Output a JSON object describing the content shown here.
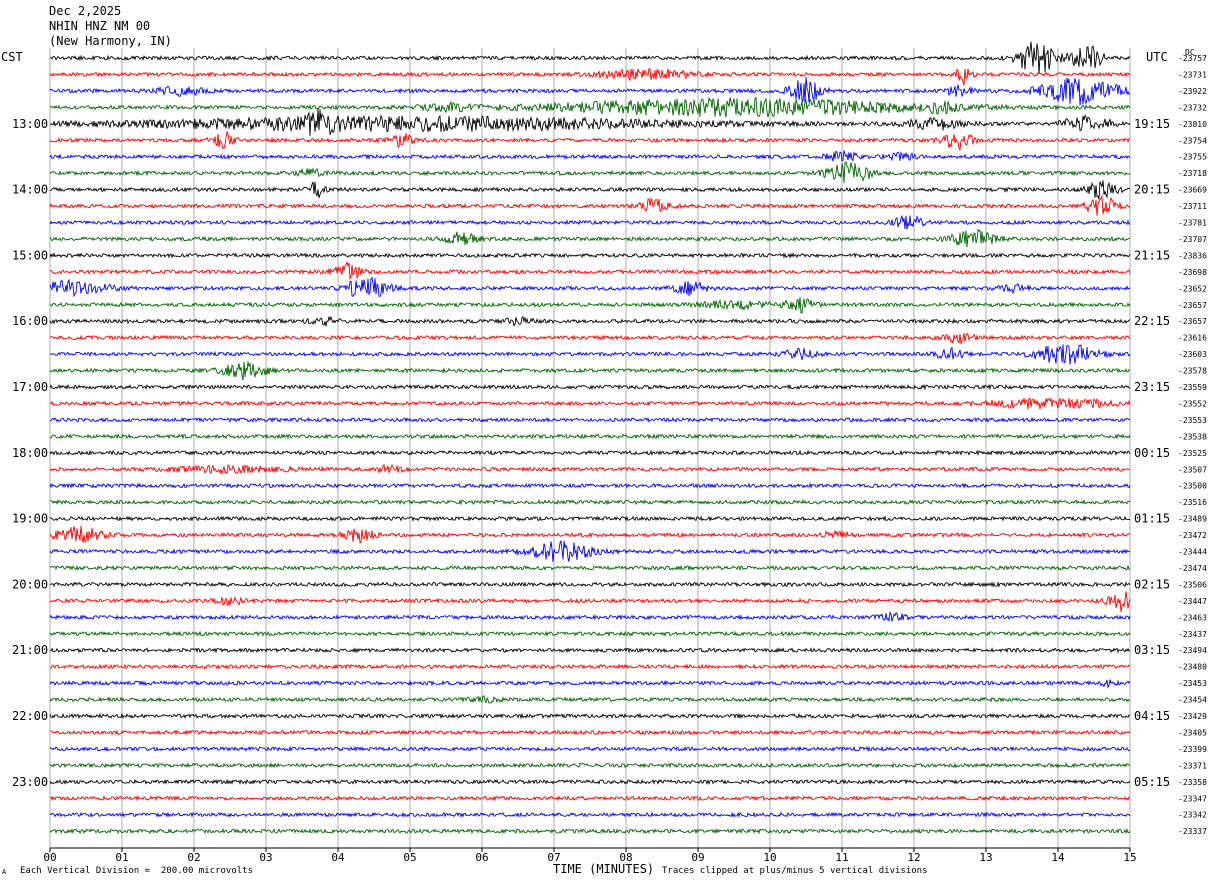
{
  "header": {
    "date": "Dec 2,2025",
    "station": "NHIN HNZ NM 00",
    "location": "(New Harmony, IN)"
  },
  "left_timezone": "CST",
  "right_timezone": "UTC",
  "dc_label": "DC",
  "footer": {
    "scale_note": "Each Vertical Division =  200.00 microvolts",
    "x_axis_label": "TIME (MINUTES)",
    "clip_note": "Traces clipped at plus/minus 5 vertical divisions",
    "corner_mark": "A"
  },
  "colors": {
    "trace_cycle": [
      "#000000",
      "#ff0000",
      "#0000ff",
      "#006400"
    ],
    "grid": "#000000",
    "background": "#ffffff"
  },
  "chart_data": {
    "type": "seismogram",
    "x_ticks": [
      "00",
      "01",
      "02",
      "03",
      "04",
      "05",
      "06",
      "07",
      "08",
      "09",
      "10",
      "11",
      "12",
      "13",
      "14",
      "15"
    ],
    "x_range": [
      0,
      15
    ],
    "trace_count": 48,
    "minutes_per_trace": 15,
    "left_hour_labels": [
      "13:00",
      "14:00",
      "15:00",
      "16:00",
      "17:00",
      "18:00",
      "19:00",
      "20:00",
      "21:00",
      "22:00",
      "23:00"
    ],
    "right_hour_labels": [
      "19:15",
      "20:15",
      "21:15",
      "22:15",
      "23:15",
      "00:15",
      "01:15",
      "02:15",
      "03:15",
      "04:15",
      "05:15"
    ],
    "dc_offsets": [
      "-23757",
      "-23731",
      "-23922",
      "-23732",
      "-23810",
      "-23754",
      "-23755",
      "-23718",
      "-23669",
      "-23711",
      "-23781",
      "-23707",
      "-23836",
      "-23698",
      "-23652",
      "-23657",
      "-23657",
      "-23616",
      "-23603",
      "-23578",
      "-23559",
      "-23552",
      "-23553",
      "-23538",
      "-23525",
      "-23507",
      "-23500",
      "-23516",
      "-23489",
      "-23472",
      "-23444",
      "-23474",
      "-23506",
      "-23447",
      "-23463",
      "-23437",
      "-23494",
      "-23480",
      "-23453",
      "-23454",
      "-23429",
      "-23405",
      "-23399",
      "-23371",
      "-23358",
      "-23347",
      "-23342",
      "-23337"
    ],
    "events": [
      {
        "trace": 0,
        "minute": 13.7,
        "amp": 5.0,
        "dur": 0.25
      },
      {
        "trace": 0,
        "minute": 14.4,
        "amp": 4.0,
        "dur": 0.2
      },
      {
        "trace": 1,
        "minute": 12.7,
        "amp": 3.0,
        "dur": 0.1
      },
      {
        "trace": 1,
        "minute": 8.3,
        "amp": 1.5,
        "dur": 0.6
      },
      {
        "trace": 2,
        "minute": 10.5,
        "amp": 4.0,
        "dur": 0.2
      },
      {
        "trace": 2,
        "minute": 1.8,
        "amp": 1.2,
        "dur": 0.3
      },
      {
        "trace": 2,
        "minute": 12.6,
        "amp": 1.5,
        "dur": 0.2
      },
      {
        "trace": 2,
        "minute": 14.3,
        "amp": 4.0,
        "dur": 0.5
      },
      {
        "trace": 3,
        "minute": 9.5,
        "amp": 2.5,
        "dur": 2.4
      },
      {
        "trace": 3,
        "minute": 5.5,
        "amp": 1.0,
        "dur": 0.3
      },
      {
        "trace": 3,
        "minute": 12.4,
        "amp": 1.0,
        "dur": 0.2
      },
      {
        "trace": 4,
        "minute": 5.0,
        "amp": 2.0,
        "dur": 3.6
      },
      {
        "trace": 4,
        "minute": 3.7,
        "amp": 2.5,
        "dur": 0.2
      },
      {
        "trace": 4,
        "minute": 12.3,
        "amp": 1.5,
        "dur": 0.4
      },
      {
        "trace": 4,
        "minute": 14.4,
        "amp": 2.5,
        "dur": 0.3
      },
      {
        "trace": 5,
        "minute": 2.4,
        "amp": 2.5,
        "dur": 0.15
      },
      {
        "trace": 5,
        "minute": 4.9,
        "amp": 2.0,
        "dur": 0.15
      },
      {
        "trace": 5,
        "minute": 12.6,
        "amp": 2.5,
        "dur": 0.2
      },
      {
        "trace": 6,
        "minute": 11.0,
        "amp": 1.5,
        "dur": 0.2
      },
      {
        "trace": 6,
        "minute": 11.8,
        "amp": 1.0,
        "dur": 0.2
      },
      {
        "trace": 7,
        "minute": 11.1,
        "amp": 3.0,
        "dur": 0.3
      },
      {
        "trace": 7,
        "minute": 3.6,
        "amp": 1.0,
        "dur": 0.2
      },
      {
        "trace": 8,
        "minute": 3.7,
        "amp": 2.5,
        "dur": 0.1
      },
      {
        "trace": 8,
        "minute": 14.6,
        "amp": 2.5,
        "dur": 0.2
      },
      {
        "trace": 9,
        "minute": 8.4,
        "amp": 2.0,
        "dur": 0.2
      },
      {
        "trace": 9,
        "minute": 14.6,
        "amp": 3.0,
        "dur": 0.2
      },
      {
        "trace": 10,
        "minute": 11.9,
        "amp": 2.0,
        "dur": 0.2
      },
      {
        "trace": 11,
        "minute": 5.7,
        "amp": 2.0,
        "dur": 0.2
      },
      {
        "trace": 11,
        "minute": 12.8,
        "amp": 2.5,
        "dur": 0.3
      },
      {
        "trace": 13,
        "minute": 4.1,
        "amp": 2.5,
        "dur": 0.2
      },
      {
        "trace": 14,
        "minute": 0.3,
        "amp": 2.0,
        "dur": 0.5
      },
      {
        "trace": 14,
        "minute": 4.4,
        "amp": 3.0,
        "dur": 0.3
      },
      {
        "trace": 14,
        "minute": 8.9,
        "amp": 2.0,
        "dur": 0.2
      },
      {
        "trace": 14,
        "minute": 13.4,
        "amp": 1.0,
        "dur": 0.2
      },
      {
        "trace": 15,
        "minute": 9.5,
        "amp": 1.0,
        "dur": 0.5
      },
      {
        "trace": 15,
        "minute": 10.4,
        "amp": 2.0,
        "dur": 0.2
      },
      {
        "trace": 16,
        "minute": 3.8,
        "amp": 1.0,
        "dur": 0.2
      },
      {
        "trace": 16,
        "minute": 6.5,
        "amp": 1.0,
        "dur": 0.2
      },
      {
        "trace": 17,
        "minute": 12.6,
        "amp": 1.5,
        "dur": 0.2
      },
      {
        "trace": 18,
        "minute": 14.1,
        "amp": 3.0,
        "dur": 0.4
      },
      {
        "trace": 18,
        "minute": 12.5,
        "amp": 1.5,
        "dur": 0.2
      },
      {
        "trace": 18,
        "minute": 10.4,
        "amp": 1.5,
        "dur": 0.2
      },
      {
        "trace": 19,
        "minute": 2.7,
        "amp": 2.5,
        "dur": 0.3
      },
      {
        "trace": 21,
        "minute": 13.9,
        "amp": 1.5,
        "dur": 0.8
      },
      {
        "trace": 25,
        "minute": 2.5,
        "amp": 0.8,
        "dur": 0.8
      },
      {
        "trace": 25,
        "minute": 4.7,
        "amp": 1.0,
        "dur": 0.2
      },
      {
        "trace": 29,
        "minute": 0.4,
        "amp": 2.5,
        "dur": 0.3
      },
      {
        "trace": 29,
        "minute": 4.3,
        "amp": 2.0,
        "dur": 0.2
      },
      {
        "trace": 29,
        "minute": 10.9,
        "amp": 0.8,
        "dur": 0.2
      },
      {
        "trace": 30,
        "minute": 7.1,
        "amp": 3.0,
        "dur": 0.4
      },
      {
        "trace": 33,
        "minute": 2.5,
        "amp": 1.0,
        "dur": 0.2
      },
      {
        "trace": 33,
        "minute": 14.9,
        "amp": 3.0,
        "dur": 0.2
      },
      {
        "trace": 34,
        "minute": 11.7,
        "amp": 1.0,
        "dur": 0.2
      },
      {
        "trace": 38,
        "minute": 14.7,
        "amp": 0.8,
        "dur": 0.1
      },
      {
        "trace": 39,
        "minute": 6.0,
        "amp": 0.8,
        "dur": 0.2
      }
    ]
  }
}
